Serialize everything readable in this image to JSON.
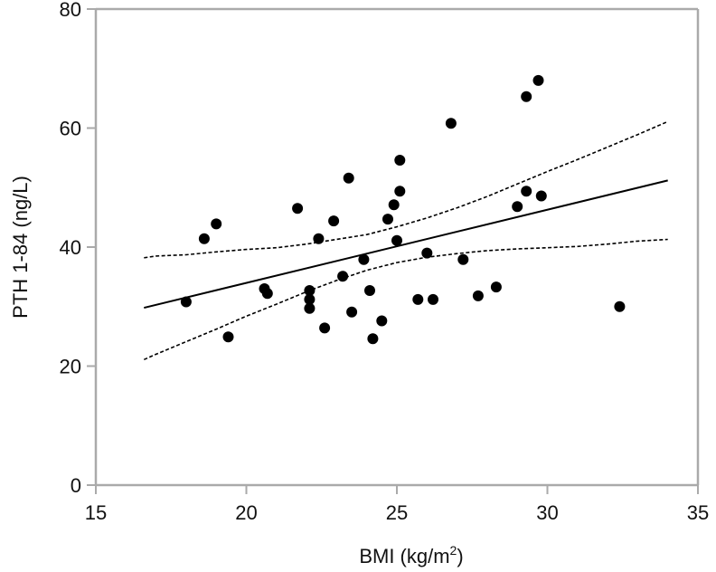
{
  "chart_data": {
    "type": "scatter",
    "title": "",
    "xlabel": "BMI (kg/m",
    "xlabel_superscript": "2",
    "xlabel_suffix": ")",
    "ylabel": "PTH 1-84 (ng/L)",
    "xlim": [
      15,
      35
    ],
    "ylim": [
      0,
      80
    ],
    "xticks": [
      15,
      20,
      25,
      30,
      35
    ],
    "yticks": [
      0,
      20,
      40,
      60,
      80
    ],
    "grid": false,
    "legend": "none",
    "colors": {
      "points": "#000000",
      "axis": "#aaaaaa",
      "lines": "#000000"
    },
    "points": [
      {
        "x": 18.0,
        "y": 30.8
      },
      {
        "x": 18.6,
        "y": 41.4
      },
      {
        "x": 19.0,
        "y": 43.9
      },
      {
        "x": 19.4,
        "y": 24.9
      },
      {
        "x": 20.6,
        "y": 33.0
      },
      {
        "x": 20.7,
        "y": 32.2
      },
      {
        "x": 21.7,
        "y": 46.5
      },
      {
        "x": 22.1,
        "y": 32.7
      },
      {
        "x": 22.1,
        "y": 31.2
      },
      {
        "x": 22.1,
        "y": 29.7
      },
      {
        "x": 22.4,
        "y": 41.4
      },
      {
        "x": 22.6,
        "y": 26.4
      },
      {
        "x": 22.9,
        "y": 44.4
      },
      {
        "x": 23.2,
        "y": 35.1
      },
      {
        "x": 23.4,
        "y": 51.6
      },
      {
        "x": 23.5,
        "y": 29.1
      },
      {
        "x": 23.9,
        "y": 37.9
      },
      {
        "x": 24.1,
        "y": 32.7
      },
      {
        "x": 24.2,
        "y": 24.6
      },
      {
        "x": 24.5,
        "y": 27.6
      },
      {
        "x": 24.7,
        "y": 44.7
      },
      {
        "x": 24.9,
        "y": 47.1
      },
      {
        "x": 25.0,
        "y": 41.1
      },
      {
        "x": 25.1,
        "y": 54.6
      },
      {
        "x": 25.1,
        "y": 49.4
      },
      {
        "x": 25.7,
        "y": 31.2
      },
      {
        "x": 26.0,
        "y": 39.0
      },
      {
        "x": 26.2,
        "y": 31.2
      },
      {
        "x": 26.8,
        "y": 60.8
      },
      {
        "x": 27.2,
        "y": 37.9
      },
      {
        "x": 27.7,
        "y": 31.8
      },
      {
        "x": 28.3,
        "y": 33.3
      },
      {
        "x": 29.0,
        "y": 46.8
      },
      {
        "x": 29.3,
        "y": 49.4
      },
      {
        "x": 29.3,
        "y": 65.3
      },
      {
        "x": 29.7,
        "y": 68.0
      },
      {
        "x": 29.8,
        "y": 48.6
      },
      {
        "x": 32.4,
        "y": 30.0
      }
    ],
    "regression_line": [
      {
        "x": 16.6,
        "y": 29.8
      },
      {
        "x": 34.0,
        "y": 51.2
      }
    ],
    "ci_upper": [
      {
        "x": 16.6,
        "y": 38.2
      },
      {
        "x": 17.0,
        "y": 38.5
      },
      {
        "x": 18.0,
        "y": 38.7
      },
      {
        "x": 19.0,
        "y": 39.2
      },
      {
        "x": 20.0,
        "y": 39.6
      },
      {
        "x": 21.0,
        "y": 39.9
      },
      {
        "x": 22.0,
        "y": 40.5
      },
      {
        "x": 23.0,
        "y": 41.3
      },
      {
        "x": 24.0,
        "y": 42.1
      },
      {
        "x": 25.0,
        "y": 43.4
      },
      {
        "x": 26.0,
        "y": 44.9
      },
      {
        "x": 27.0,
        "y": 46.6
      },
      {
        "x": 28.0,
        "y": 48.5
      },
      {
        "x": 29.0,
        "y": 50.6
      },
      {
        "x": 30.0,
        "y": 52.7
      },
      {
        "x": 31.0,
        "y": 54.7
      },
      {
        "x": 32.0,
        "y": 56.8
      },
      {
        "x": 33.0,
        "y": 58.9
      },
      {
        "x": 34.0,
        "y": 61.1
      }
    ],
    "ci_lower": [
      {
        "x": 16.6,
        "y": 21.1
      },
      {
        "x": 17.0,
        "y": 22.0
      },
      {
        "x": 18.0,
        "y": 24.1
      },
      {
        "x": 19.0,
        "y": 26.2
      },
      {
        "x": 20.0,
        "y": 28.4
      },
      {
        "x": 21.0,
        "y": 30.4
      },
      {
        "x": 22.0,
        "y": 32.5
      },
      {
        "x": 23.0,
        "y": 34.4
      },
      {
        "x": 24.0,
        "y": 36.1
      },
      {
        "x": 25.0,
        "y": 37.4
      },
      {
        "x": 26.0,
        "y": 38.3
      },
      {
        "x": 27.0,
        "y": 38.9
      },
      {
        "x": 28.0,
        "y": 39.4
      },
      {
        "x": 29.0,
        "y": 39.7
      },
      {
        "x": 30.0,
        "y": 39.9
      },
      {
        "x": 31.0,
        "y": 40.1
      },
      {
        "x": 32.0,
        "y": 40.5
      },
      {
        "x": 33.0,
        "y": 41.0
      },
      {
        "x": 34.0,
        "y": 41.3
      }
    ]
  }
}
